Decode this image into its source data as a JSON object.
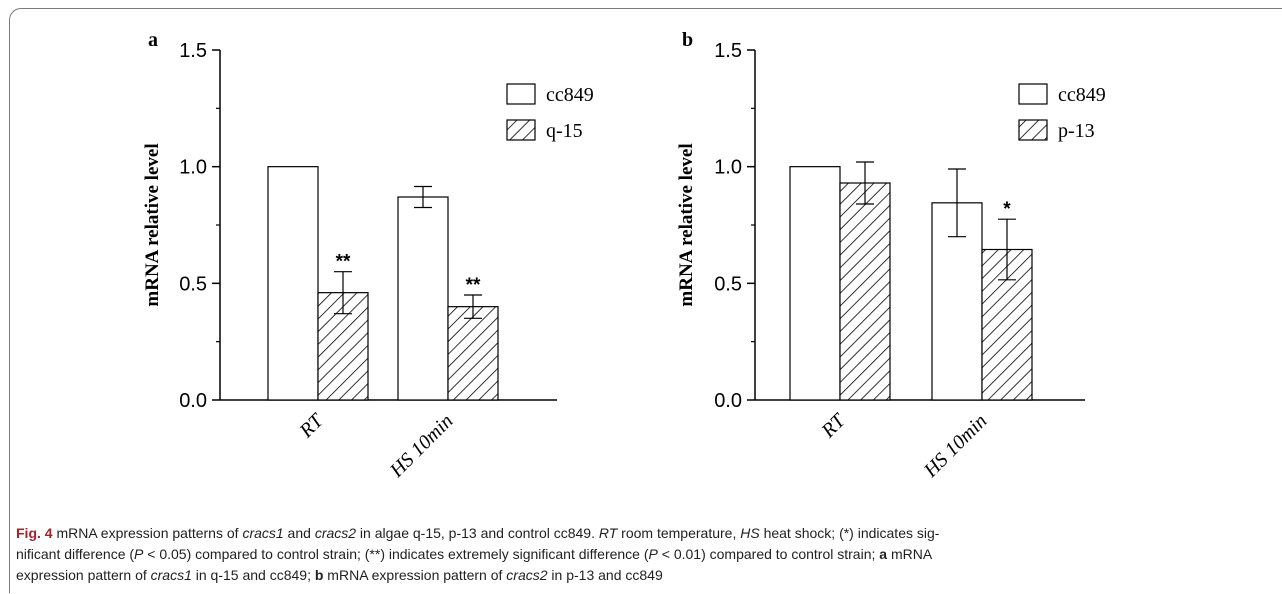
{
  "chart_data": [
    {
      "type": "bar",
      "panel_label": "a",
      "categories": [
        "RT",
        "HS 10min"
      ],
      "series": [
        {
          "name": "cc849",
          "values": [
            1.0,
            0.87
          ],
          "errors": [
            0,
            0.045
          ],
          "fill": "open"
        },
        {
          "name": "q-15",
          "values": [
            0.46,
            0.4
          ],
          "errors": [
            0.09,
            0.05
          ],
          "fill": "hatched"
        }
      ],
      "significance": [
        {
          "series": "q-15",
          "category": "RT",
          "mark": "**"
        },
        {
          "series": "q-15",
          "category": "HS 10min",
          "mark": "**"
        }
      ],
      "ylabel": "mRNA relative level",
      "ylim": [
        0,
        1.5
      ],
      "yticks": [
        "0.0",
        "0.5",
        "1.0",
        "1.5"
      ],
      "legend": "top-right",
      "grid": false
    },
    {
      "type": "bar",
      "panel_label": "b",
      "categories": [
        "RT",
        "HS 10min"
      ],
      "series": [
        {
          "name": "cc849",
          "values": [
            1.0,
            0.845
          ],
          "errors": [
            0,
            0.145
          ],
          "fill": "open"
        },
        {
          "name": "p-13",
          "values": [
            0.93,
            0.645
          ],
          "errors": [
            0.09,
            0.13
          ],
          "fill": "hatched"
        }
      ],
      "significance": [
        {
          "series": "p-13",
          "category": "HS 10min",
          "mark": "*"
        }
      ],
      "ylabel": "mRNA relative level",
      "ylim": [
        0,
        1.5
      ],
      "yticks": [
        "0.0",
        "0.5",
        "1.0",
        "1.5"
      ],
      "legend": "top-right",
      "grid": false
    }
  ],
  "caption": {
    "fig_label": "Fig. 4",
    "line1_parts": [
      {
        "t": "  mRNA expression patterns of ",
        "i": false
      },
      {
        "t": "cracs1",
        "i": true
      },
      {
        "t": " and ",
        "i": false
      },
      {
        "t": "cracs2",
        "i": true
      },
      {
        "t": " in algae q-15, p-13 and control cc849. ",
        "i": false
      },
      {
        "t": "RT",
        "i": true
      },
      {
        "t": " room temperature, ",
        "i": false
      },
      {
        "t": "HS",
        "i": true
      },
      {
        "t": " heat shock; (*) indicates sig-",
        "i": false
      }
    ],
    "line2_parts": [
      {
        "t": "nificant difference (",
        "i": false
      },
      {
        "t": "P",
        "i": true
      },
      {
        "t": " < 0.05) compared to control strain; (**) indicates extremely significant difference (",
        "i": false
      },
      {
        "t": "P",
        "i": true
      },
      {
        "t": " < 0.01) compared to control strain; ",
        "i": false
      },
      {
        "t": "a",
        "b": true
      },
      {
        "t": " mRNA",
        "i": false
      }
    ],
    "line3_parts": [
      {
        "t": "expression pattern of ",
        "i": false
      },
      {
        "t": "cracs1",
        "i": true
      },
      {
        "t": " in q-15 and cc849; ",
        "i": false
      },
      {
        "t": "b",
        "b": true
      },
      {
        "t": " mRNA expression pattern of ",
        "i": false
      },
      {
        "t": "cracs2",
        "i": true
      },
      {
        "t": " in p-13 and cc849",
        "i": false
      }
    ]
  }
}
